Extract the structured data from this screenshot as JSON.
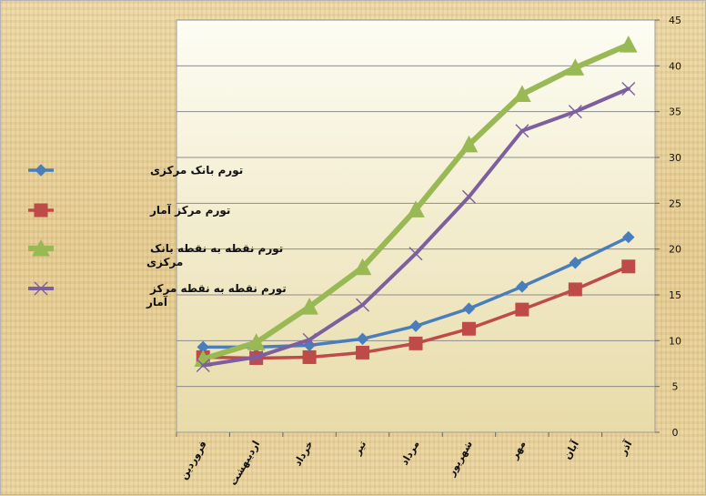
{
  "chart_data": {
    "type": "line",
    "categories": [
      "فروردین",
      "اردیبهشت",
      "خرداد",
      "تیر",
      "مرداد",
      "شهریور",
      "مهر",
      "آبان",
      "آذر"
    ],
    "ylim": [
      0,
      45
    ],
    "yticks": [
      0,
      5,
      10,
      15,
      20,
      25,
      30,
      35,
      40,
      45
    ],
    "y_axis_side": "right",
    "grid": true,
    "legend_position": "left",
    "series": [
      {
        "name": "تورم بانک مرکزی",
        "color": "#4a7ebb",
        "marker": "diamond",
        "values": [
          9.3,
          9.3,
          9.5,
          10.2,
          11.6,
          13.5,
          15.9,
          18.5,
          21.3
        ]
      },
      {
        "name": "تورم مرکز آمار",
        "color": "#be4b48",
        "marker": "square",
        "values": [
          8.2,
          8.1,
          8.2,
          8.7,
          9.7,
          11.3,
          13.4,
          15.6,
          18.1
        ]
      },
      {
        "name": "تورم نقطه به نقطه بانک مرکزی",
        "color": "#98b954",
        "marker": "triangle",
        "values": [
          8.0,
          9.8,
          13.7,
          18.0,
          24.3,
          31.4,
          36.9,
          39.8,
          42.3
        ]
      },
      {
        "name": "تورم نقطه به نقطه مرکز آمار",
        "color": "#7d5fa0",
        "marker": "cross",
        "values": [
          7.3,
          8.2,
          10.1,
          13.9,
          19.5,
          25.7,
          32.9,
          35.0,
          37.5
        ]
      }
    ],
    "legend_lines": [
      [
        "تورم بانک مرکزی"
      ],
      [
        "تورم مرکز آمار"
      ],
      [
        "تورم نقطه به نقطه بانک",
        "مرکزی"
      ],
      [
        "تورم نقطه به نقطه مرکز",
        "آمار"
      ]
    ]
  }
}
